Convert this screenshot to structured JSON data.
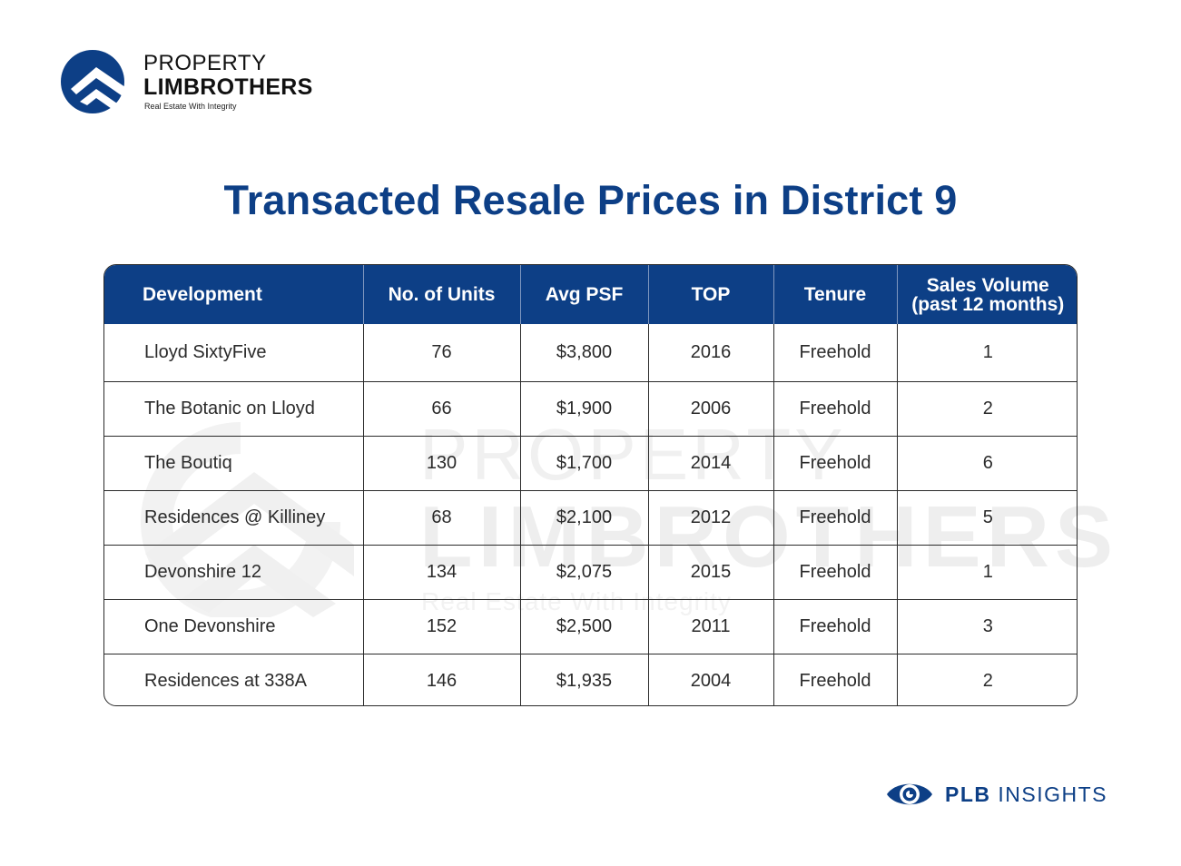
{
  "brand": {
    "line1": "PROPERTY",
    "line2": "LIMBROTHERS",
    "tagline": "Real Estate With Integrity",
    "color": "#0d3f86"
  },
  "title": "Transacted Resale Prices in District 9",
  "watermark": {
    "line1": "PROPERTY",
    "line2": "LIMBROTHERS",
    "tagline": "Real Estate With Integrity"
  },
  "table": {
    "headers": {
      "development": "Development",
      "units": "No. of Units",
      "psf": "Avg PSF",
      "top": "TOP",
      "tenure": "Tenure",
      "volume_line1": "Sales Volume",
      "volume_line2": "(past 12 months)"
    },
    "rows": [
      {
        "development": "Lloyd SixtyFive",
        "units": "76",
        "psf": "$3,800",
        "top": "2016",
        "tenure": "Freehold",
        "volume": "1"
      },
      {
        "development": "The Botanic on Lloyd",
        "units": "66",
        "psf": "$1,900",
        "top": "2006",
        "tenure": "Freehold",
        "volume": "2"
      },
      {
        "development": "The Boutiq",
        "units": "130",
        "psf": "$1,700",
        "top": "2014",
        "tenure": "Freehold",
        "volume": "6"
      },
      {
        "development": "Residences @ Killiney",
        "units": "68",
        "psf": "$2,100",
        "top": "2012",
        "tenure": "Freehold",
        "volume": "5"
      },
      {
        "development": "Devonshire 12",
        "units": "134",
        "psf": "$2,075",
        "top": "2015",
        "tenure": "Freehold",
        "volume": "1"
      },
      {
        "development": "One Devonshire",
        "units": "152",
        "psf": "$2,500",
        "top": "2011",
        "tenure": "Freehold",
        "volume": "3"
      },
      {
        "development": "Residences at 338A",
        "units": "146",
        "psf": "$1,935",
        "top": "2004",
        "tenure": "Freehold",
        "volume": "2"
      }
    ]
  },
  "footer": {
    "brand_bold": "PLB",
    "brand_rest": "INSIGHTS",
    "icon": "eye-icon"
  }
}
